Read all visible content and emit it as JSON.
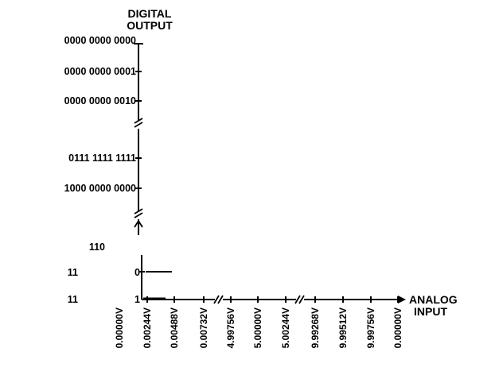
{
  "y_axis": {
    "title_line1": "DIGITAL",
    "title_line2": "OUTPUT",
    "codes": [
      "0000 0000 0000",
      "0000 0000 0001",
      "0000 0000 0010",
      "0111 1111 1111",
      "1000 0000 0000"
    ],
    "lower_labels": {
      "top": "110",
      "left_mid": "11",
      "right_mid": "0",
      "left_bottom": "11",
      "right_bottom": "1"
    }
  },
  "x_axis": {
    "title_line1": "ANALOG",
    "title_line2": "INPUT",
    "ticks": [
      "0.00000V",
      "0.00244V",
      "0.00488V",
      "0.00732V",
      "4.99756V",
      "5.00000V",
      "5.00244V",
      "9.99268V",
      "9.99512V",
      "9.99756V",
      "0.00000V"
    ]
  }
}
